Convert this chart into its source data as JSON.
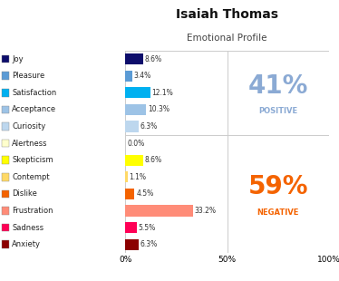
{
  "title": "Isaiah Thomas",
  "subtitle": "Emotional Profile",
  "categories": [
    "Joy",
    "Pleasure",
    "Satisfaction",
    "Acceptance",
    "Curiosity",
    "Alertness",
    "Skepticism",
    "Contempt",
    "Dislike",
    "Frustration",
    "Sadness",
    "Anxiety"
  ],
  "values": [
    8.6,
    3.4,
    12.1,
    10.3,
    6.3,
    0.0,
    8.6,
    1.1,
    4.5,
    33.2,
    5.5,
    6.3
  ],
  "bar_colors": [
    "#0d0d6b",
    "#5b9bd5",
    "#00b0f0",
    "#9dc3e6",
    "#bdd7ee",
    "#ffffcc",
    "#ffff00",
    "#ffd966",
    "#f46300",
    "#ff8c78",
    "#ff0055",
    "#8b0000"
  ],
  "positive_count": 5,
  "positive_pct": "41%",
  "negative_pct": "59%",
  "positive_color": "#8baad4",
  "negative_color": "#f46300",
  "background_color": "#ffffff",
  "grid_color": "#cccccc",
  "bar_label_fontsize": 5.5,
  "legend_fontsize": 6.0,
  "title_fontsize": 10,
  "subtitle_fontsize": 7.5,
  "pct_fontsize": 20,
  "pct_label_fontsize": 6
}
